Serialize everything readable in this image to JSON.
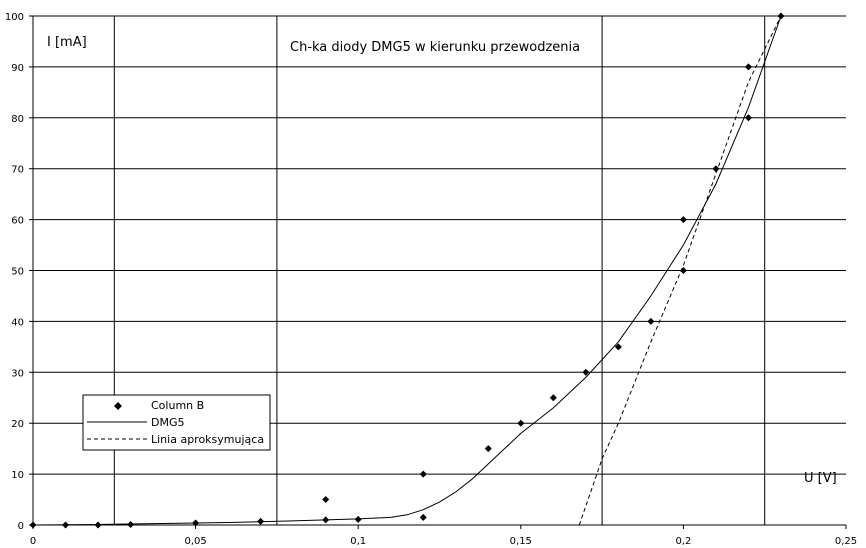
{
  "chart_data": {
    "type": "scatter",
    "title": "Ch-ka diody DMG5 w kierunku przewodzenia",
    "xlabel": "U [V]",
    "ylabel": "I [mA]",
    "xlim": [
      0,
      0.25
    ],
    "ylim": [
      0,
      100
    ],
    "x_ticks": [
      "0",
      "0,05",
      "0,1",
      "0,15",
      "0,2",
      "0,25"
    ],
    "y_ticks": [
      "0",
      "10",
      "20",
      "30",
      "40",
      "50",
      "60",
      "70",
      "80",
      "90",
      "100"
    ],
    "x_tick_values": [
      0,
      0.05,
      0.1,
      0.15,
      0.2,
      0.25
    ],
    "y_tick_values": [
      0,
      10,
      20,
      30,
      40,
      50,
      60,
      70,
      80,
      90,
      100
    ],
    "vertical_gridlines": [
      0.025,
      0.075,
      0.175,
      0.225
    ],
    "grid": true,
    "legend_position": "bottom-left",
    "series": [
      {
        "name": "Column B",
        "kind": "markers",
        "marker": "diamond",
        "color": "#000000",
        "points": [
          [
            0,
            0
          ],
          [
            0.01,
            0
          ],
          [
            0.02,
            0
          ],
          [
            0.03,
            0.1
          ],
          [
            0.05,
            0.4
          ],
          [
            0.07,
            0.7
          ],
          [
            0.09,
            1
          ],
          [
            0.09,
            5
          ],
          [
            0.1,
            1.1
          ],
          [
            0.12,
            1.5
          ],
          [
            0.12,
            10
          ],
          [
            0.14,
            15
          ],
          [
            0.15,
            20
          ],
          [
            0.16,
            25
          ],
          [
            0.17,
            30
          ],
          [
            0.18,
            35
          ],
          [
            0.19,
            40
          ],
          [
            0.2,
            50
          ],
          [
            0.2,
            60
          ],
          [
            0.21,
            70
          ],
          [
            0.22,
            80
          ],
          [
            0.22,
            90
          ],
          [
            0.23,
            100
          ]
        ]
      },
      {
        "name": "DMG5",
        "kind": "line",
        "dash": "solid",
        "color": "#000000",
        "points": [
          [
            0,
            0
          ],
          [
            0.02,
            0.1
          ],
          [
            0.04,
            0.3
          ],
          [
            0.06,
            0.5
          ],
          [
            0.08,
            0.8
          ],
          [
            0.1,
            1.2
          ],
          [
            0.11,
            1.5
          ],
          [
            0.115,
            2
          ],
          [
            0.12,
            3
          ],
          [
            0.125,
            4.5
          ],
          [
            0.13,
            6.5
          ],
          [
            0.135,
            9
          ],
          [
            0.14,
            12
          ],
          [
            0.15,
            18
          ],
          [
            0.16,
            23
          ],
          [
            0.17,
            29
          ],
          [
            0.18,
            36
          ],
          [
            0.19,
            45
          ],
          [
            0.2,
            55
          ],
          [
            0.21,
            67
          ],
          [
            0.22,
            82
          ],
          [
            0.23,
            100
          ]
        ]
      },
      {
        "name": "Linia aproksymująca",
        "kind": "line",
        "dash": "dashed",
        "color": "#000000",
        "points": [
          [
            0.168,
            0
          ],
          [
            0.175,
            13
          ],
          [
            0.18,
            20
          ],
          [
            0.19,
            36
          ],
          [
            0.2,
            51
          ],
          [
            0.21,
            69
          ],
          [
            0.22,
            87
          ],
          [
            0.23,
            100
          ]
        ]
      }
    ]
  }
}
